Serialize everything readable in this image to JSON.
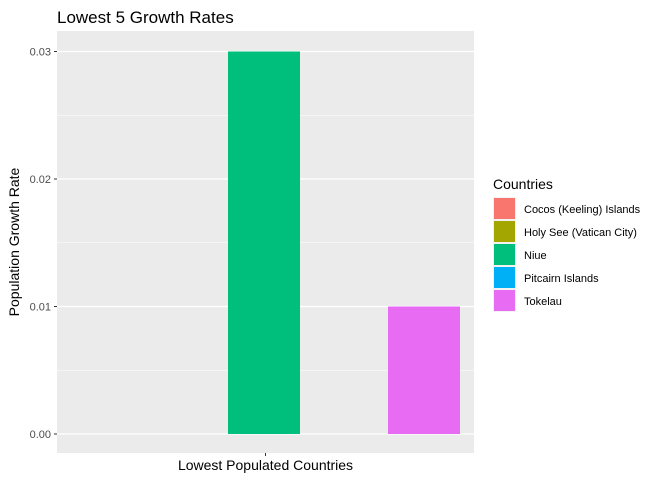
{
  "chart_data": {
    "type": "bar",
    "title": "Lowest 5 Growth Rates",
    "xlabel": "Lowest Populated Countries",
    "ylabel": "Population Growth Rate",
    "ylim": [
      0,
      0.0315
    ],
    "yticks": [
      "0.00",
      "0.01",
      "0.02",
      "0.03"
    ],
    "grid": true,
    "legend_position": "right",
    "legend_title": "Countries",
    "categories": [
      "Cocos (Keeling) Islands",
      "Holy See (Vatican City)",
      "Niue",
      "Pitcairn Islands",
      "Tokelau"
    ],
    "values": [
      0,
      0,
      0.03,
      0,
      0.01
    ],
    "colors": [
      "#F8766D",
      "#A3A500",
      "#00BF7D",
      "#00B0F6",
      "#E76BF3"
    ]
  }
}
